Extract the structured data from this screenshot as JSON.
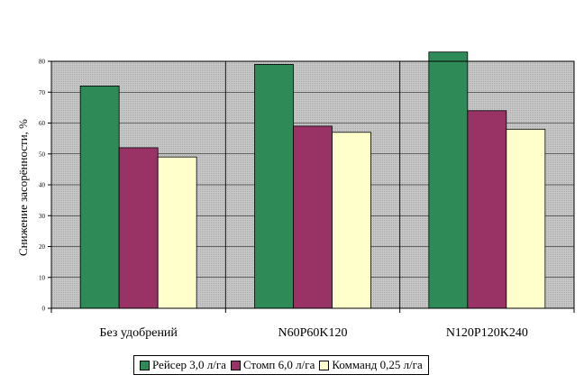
{
  "chart_data": {
    "type": "bar",
    "ylabel": "Снижение засорённости, %",
    "xlabel": "",
    "title": "",
    "ylim": [
      0,
      80
    ],
    "yticks": [
      0,
      10,
      20,
      30,
      40,
      50,
      60,
      70,
      80
    ],
    "grid": true,
    "legend_position": "bottom",
    "categories": [
      "Без удобрений",
      "N60P60K120",
      "N120P120K240"
    ],
    "series": [
      {
        "name": "Рейсер 3,0 л/га",
        "values": [
          72,
          79,
          83
        ],
        "color": "#2e8b57"
      },
      {
        "name": "Стомп 6,0 л/га",
        "values": [
          52,
          59,
          64
        ],
        "color": "#993366"
      },
      {
        "name": "Комманд 0,25 л/га",
        "values": [
          49,
          57,
          58
        ],
        "color": "#ffffcc"
      }
    ],
    "plot_background": "#c0c0c0"
  }
}
